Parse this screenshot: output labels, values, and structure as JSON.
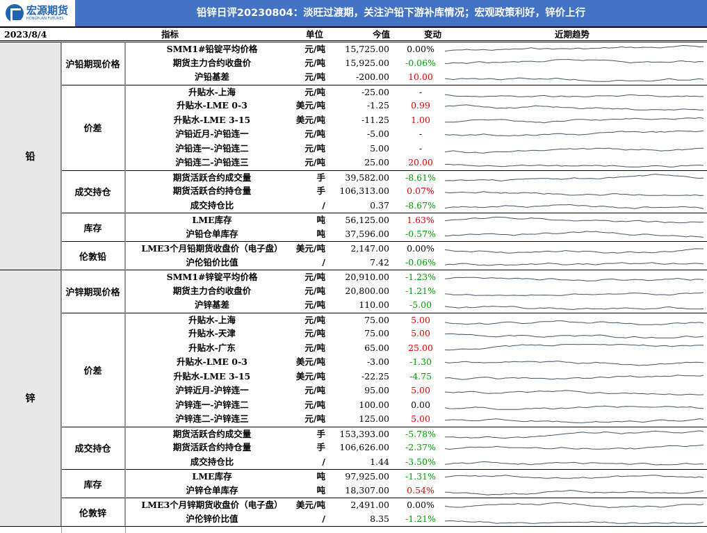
{
  "header": {
    "brand": "宏源期货",
    "brand_en": "HONGYUAN FUTURES",
    "title": "铅锌日评20230804：淡旺过渡期，关注沪铅下游补库情况；宏观政策利好，锌价上行"
  },
  "columns": {
    "date": "2023/8/4",
    "indicator": "指标",
    "unit": "单位",
    "value": "今值",
    "change": "变动",
    "trend": "近期趋势"
  },
  "groups": [
    {
      "name": "铅",
      "sub": [
        {
          "name": "沪铅期现价格",
          "rows": [
            {
              "ind": "SMM1#铅锭平均价格",
              "unit": "元/吨",
              "val": "15,725.00",
              "chg": "0.00%"
            },
            {
              "ind": "期货主力合约收盘价",
              "unit": "元/吨",
              "val": "15,925.00",
              "chg": "-0.06%"
            },
            {
              "ind": "沪铅基差",
              "unit": "元/吨",
              "val": "-200.00",
              "chg": "10.00"
            }
          ]
        },
        {
          "name": "价差",
          "rows": [
            {
              "ind": "升贴水-上海",
              "unit": "元/吨",
              "val": "-25.00",
              "chg": "-"
            },
            {
              "ind": "升贴水-LME 0-3",
              "unit": "美元/吨",
              "val": "-1.25",
              "chg": "0.99"
            },
            {
              "ind": "升贴水-LME 3-15",
              "unit": "美元/吨",
              "val": "-11.25",
              "chg": "1.00"
            },
            {
              "ind": "沪铅近月-沪铅连一",
              "unit": "元/吨",
              "val": "-5.00",
              "chg": "-"
            },
            {
              "ind": "沪铅连一-沪铅连二",
              "unit": "元/吨",
              "val": "5.00",
              "chg": "-"
            },
            {
              "ind": "沪铅连二-沪铅连三",
              "unit": "元/吨",
              "val": "25.00",
              "chg": "20.00"
            }
          ]
        },
        {
          "name": "成交持仓",
          "rows": [
            {
              "ind": "期货活跃合约成交量",
              "unit": "手",
              "val": "39,582.00",
              "chg": "-8.61%"
            },
            {
              "ind": "期货活跃合约持仓量",
              "unit": "手",
              "val": "106,313.00",
              "chg": "0.07%"
            },
            {
              "ind": "成交持仓比",
              "unit": "/",
              "val": "0.37",
              "chg": "-8.67%"
            }
          ]
        },
        {
          "name": "库存",
          "rows": [
            {
              "ind": "LME库存",
              "unit": "吨",
              "val": "56,125.00",
              "chg": "1.63%"
            },
            {
              "ind": "沪铅仓单库存",
              "unit": "吨",
              "val": "37,596.00",
              "chg": "-0.57%"
            }
          ]
        },
        {
          "name": "伦敦铅",
          "rows": [
            {
              "ind": "LME3个月铅期货收盘价（电子盘）",
              "unit": "美元/吨",
              "val": "2,147.00",
              "chg": "0.00%"
            },
            {
              "ind": "沪伦铅价比值",
              "unit": "/",
              "val": "7.42",
              "chg": "-0.06%"
            }
          ]
        }
      ]
    },
    {
      "name": "锌",
      "sub": [
        {
          "name": "沪锌期现价格",
          "rows": [
            {
              "ind": "SMM1#锌锭平均价格",
              "unit": "元/吨",
              "val": "20,910.00",
              "chg": "-1.23%"
            },
            {
              "ind": "期货主力合约收盘价",
              "unit": "元/吨",
              "val": "20,800.00",
              "chg": "-1.21%"
            },
            {
              "ind": "沪锌基差",
              "unit": "元/吨",
              "val": "110.00",
              "chg": "-5.00"
            }
          ]
        },
        {
          "name": "价差",
          "rows": [
            {
              "ind": "升贴水-上海",
              "unit": "元/吨",
              "val": "75.00",
              "chg": "5.00"
            },
            {
              "ind": "升贴水-天津",
              "unit": "元/吨",
              "val": "75.00",
              "chg": "5.00"
            },
            {
              "ind": "升贴水-广东",
              "unit": "元/吨",
              "val": "65.00",
              "chg": "25.00"
            },
            {
              "ind": "升贴水-LME 0-3",
              "unit": "美元/吨",
              "val": "-3.00",
              "chg": "-1.30"
            },
            {
              "ind": "升贴水-LME 3-15",
              "unit": "美元/吨",
              "val": "-22.25",
              "chg": "-4.75"
            },
            {
              "ind": "沪锌近月-沪锌连一",
              "unit": "元/吨",
              "val": "95.00",
              "chg": "5.00"
            },
            {
              "ind": "沪锌连一-沪锌连二",
              "unit": "元/吨",
              "val": "100.00",
              "chg": "0.00"
            },
            {
              "ind": "沪锌连二-沪锌连三",
              "unit": "元/吨",
              "val": "125.00",
              "chg": "5.00"
            }
          ]
        },
        {
          "name": "成交持仓",
          "rows": [
            {
              "ind": "期货活跃合约成交量",
              "unit": "手",
              "val": "153,393.00",
              "chg": "-5.78%"
            },
            {
              "ind": "期货活跃合约持仓量",
              "unit": "手",
              "val": "106,626.00",
              "chg": "-2.37%"
            },
            {
              "ind": "成交持仓比",
              "unit": "/",
              "val": "1.44",
              "chg": "-3.50%"
            }
          ]
        },
        {
          "name": "库存",
          "rows": [
            {
              "ind": "LME库存",
              "unit": "吨",
              "val": "97,925.00",
              "chg": "-1.31%"
            },
            {
              "ind": "沪锌仓单库存",
              "unit": "吨",
              "val": "18,307.00",
              "chg": "0.54%"
            }
          ]
        },
        {
          "name": "伦敦锌",
          "rows": [
            {
              "ind": "LME3个月锌期货收盘价（电子盘）",
              "unit": "美元/吨",
              "val": "2,491.00",
              "chg": "0.00%"
            },
            {
              "ind": "沪伦锌价比值",
              "unit": "/",
              "val": "8.35",
              "chg": "-1.21%"
            }
          ]
        }
      ]
    }
  ],
  "colors": {
    "header_bg": "#4472C4",
    "up": "#e00000",
    "down": "#00a000"
  }
}
